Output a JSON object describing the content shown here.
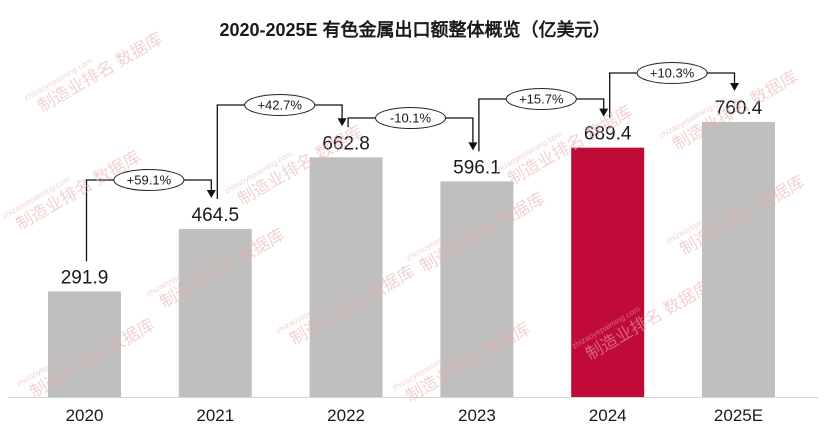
{
  "chart_data": {
    "type": "bar",
    "title": "2020-2025E 有色金属出口额整体概览（亿美元）",
    "xlabel": "",
    "ylabel": "",
    "categories": [
      "2020",
      "2021",
      "2022",
      "2023",
      "2024",
      "2025E"
    ],
    "values": [
      291.9,
      464.5,
      662.8,
      596.1,
      689.4,
      760.4
    ],
    "bar_colors": [
      "#BFBFBF",
      "#BFBFBF",
      "#BFBFBF",
      "#BFBFBF",
      "#C00A38",
      "#BFBFBF"
    ],
    "growth_labels": [
      "+59.1%",
      "+42.7%",
      "-10.1%",
      "+15.7%",
      "+10.3%"
    ],
    "grid": false
  },
  "watermark": {
    "text": "制造业排名 数据库",
    "url": "zhizaoyepaiming.com",
    "color": "#E8AFAF"
  }
}
